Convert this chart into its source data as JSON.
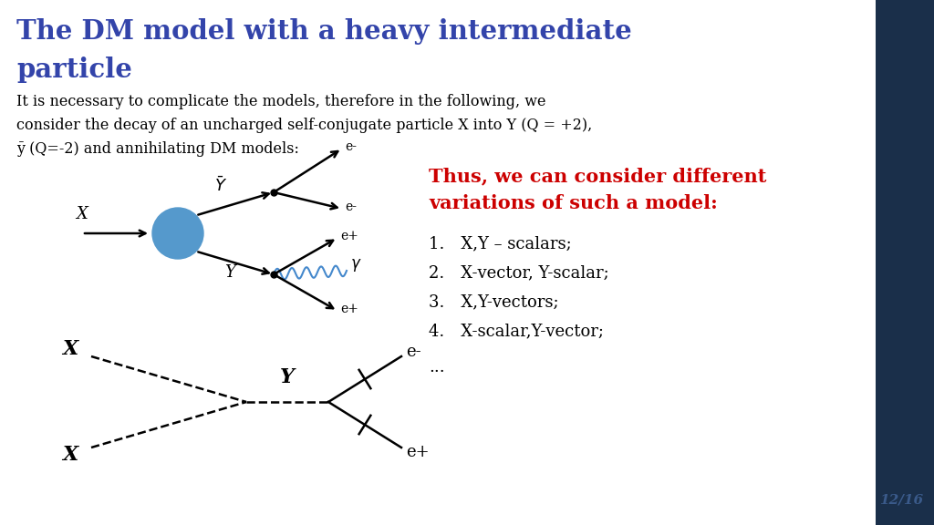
{
  "title_line1": "The DM model with a heavy intermediate",
  "title_line2": "particle",
  "title_color": "#3344aa",
  "body_lines": [
    "It is necessary to complicate the models, therefore in the following, we",
    "consider the decay of an uncharged self-conjugate particle X into Y (Q = +2),",
    "ȳ (Q=-2) and annihilating DM models:"
  ],
  "highlight_line1": "Thus, we can consider different",
  "highlight_line2": "variations of such a model:",
  "highlight_color": "#cc0000",
  "list_items": [
    "X,Y – scalars;",
    "X-vector, Y-scalar;",
    "X,Y-vectors;",
    "X-scalar,Y-vector;"
  ],
  "ellipsis": "...",
  "slide_number": "12/16",
  "slide_number_color": "#3a5a8a",
  "background_color": "#ffffff",
  "sidebar_color": "#1a2f4a",
  "gamma_color": "#4488cc"
}
